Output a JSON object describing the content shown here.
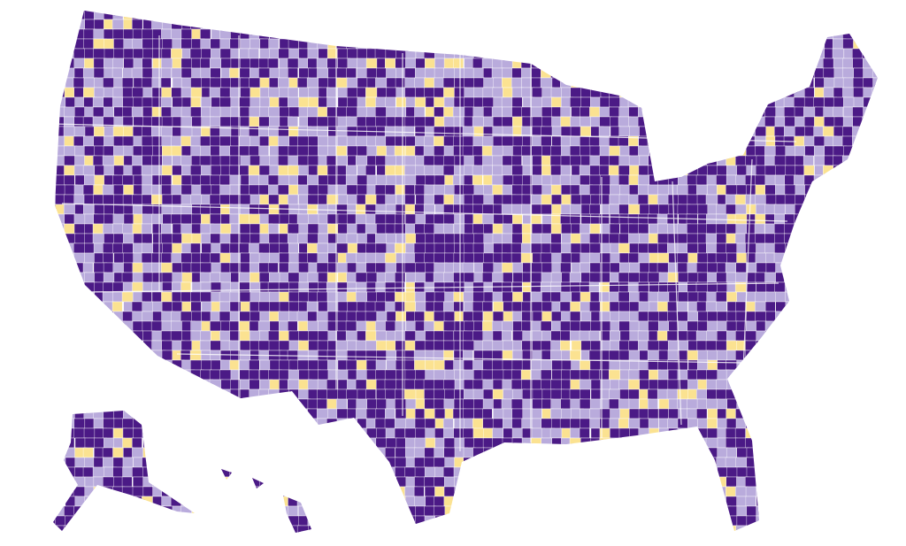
{
  "palette": [
    "#4b1a86",
    "#b9abdc",
    "#fbe291"
  ]
}
